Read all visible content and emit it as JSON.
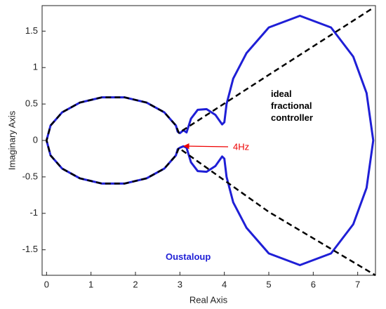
{
  "chart_data": {
    "type": "line",
    "xlabel": "Real Axis",
    "ylabel": "Imaginary Axis",
    "xlim": [
      -0.1,
      7.4
    ],
    "ylim": [
      -1.85,
      1.85
    ],
    "xticks": [
      0,
      1,
      2,
      3,
      4,
      5,
      6,
      7
    ],
    "yticks": [
      -1.5,
      -1,
      -0.5,
      0,
      0.5,
      1,
      1.5
    ],
    "grid": false,
    "annotations": [
      "4Hz"
    ],
    "series": [
      {
        "name": "Oustaloup",
        "color": "#1f1fd6",
        "dashed": false,
        "x": [
          0,
          0.09,
          0.351,
          0.75,
          1.24,
          1.76,
          2.25,
          2.649,
          2.91,
          2.95,
          3.0,
          3.08,
          3.15,
          3.25,
          3.4,
          3.6,
          3.8,
          3.95,
          4.0,
          4.05,
          4.2,
          4.5,
          5.0,
          5.7,
          6.4,
          6.9,
          7.2,
          7.35,
          7.2,
          6.9,
          6.4,
          5.7,
          5.0,
          4.5,
          4.2,
          4.05,
          4.0,
          3.95,
          3.8,
          3.6,
          3.4,
          3.25,
          3.15,
          3.08,
          3.0,
          2.95,
          2.91,
          2.649,
          2.25,
          1.76,
          1.24,
          0.75,
          0.351,
          0.09,
          0
        ],
        "values": [
          0,
          0.205,
          0.386,
          0.52,
          0.591,
          0.591,
          0.52,
          0.386,
          0.205,
          0.12,
          0.1,
          0.14,
          0.11,
          0.3,
          0.42,
          0.43,
          0.35,
          0.22,
          0.25,
          0.5,
          0.85,
          1.2,
          1.55,
          1.71,
          1.55,
          1.15,
          0.65,
          0,
          -0.65,
          -1.15,
          -1.55,
          -1.71,
          -1.55,
          -1.2,
          -0.85,
          -0.5,
          -0.25,
          -0.22,
          -0.35,
          -0.43,
          -0.42,
          -0.3,
          -0.1,
          -0.08,
          -0.1,
          -0.12,
          -0.205,
          -0.386,
          -0.52,
          -0.591,
          -0.591,
          -0.52,
          -0.386,
          -0.205,
          0
        ]
      },
      {
        "name": "ideal fractional controller",
        "color": "#000000",
        "dashed": true,
        "x": [
          7.3,
          5.0,
          2.977,
          2.91,
          2.649,
          2.25,
          1.76,
          1.24,
          0.75,
          0.351,
          0.09,
          0,
          0.09,
          0.351,
          0.75,
          1.24,
          1.76,
          2.25,
          2.649,
          2.91,
          2.977,
          5.0,
          7.4
        ],
        "values": [
          1.8,
          0.9,
          0.104,
          0.205,
          0.386,
          0.52,
          0.591,
          0.591,
          0.52,
          0.386,
          0.205,
          0,
          -0.205,
          -0.386,
          -0.52,
          -0.591,
          -0.591,
          -0.52,
          -0.386,
          -0.205,
          -0.104,
          -0.98,
          -1.85
        ]
      }
    ]
  }
}
